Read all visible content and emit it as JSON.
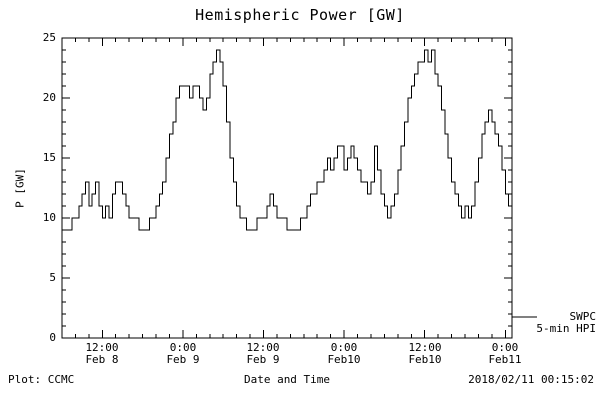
{
  "title": "Hemispheric Power [GW]",
  "footer": {
    "plot_credit": "Plot: CCMC",
    "timestamp": "2018/02/11 00:15:02"
  },
  "legend": {
    "line1": "SWPC",
    "line2": "5-min HPI"
  },
  "chart_data": {
    "type": "line",
    "step": true,
    "title": "Hemispheric Power [GW]",
    "xlabel": "Date and Time",
    "ylabel": "P [GW]",
    "ylim": [
      0,
      25
    ],
    "yticks": [
      0,
      5,
      10,
      15,
      20,
      25
    ],
    "grid": false,
    "line_color": "#000000",
    "background": "#ffffff",
    "legend_position": "right-outside",
    "x_start": "2018-02-08 06:00",
    "x_end": "2018-02-11 01:00",
    "x_interval_minutes": 30,
    "x_span_hours": 67,
    "xticks": [
      {
        "hour": 6,
        "time": "12:00",
        "date": "Feb 8"
      },
      {
        "hour": 18,
        "time": "0:00",
        "date": "Feb 9"
      },
      {
        "hour": 30,
        "time": "12:00",
        "date": "Feb 9"
      },
      {
        "hour": 42,
        "time": "0:00",
        "date": "Feb10"
      },
      {
        "hour": 54,
        "time": "12:00",
        "date": "Feb10"
      },
      {
        "hour": 66,
        "time": "0:00",
        "date": "Feb11"
      }
    ],
    "series": [
      {
        "name": "SWPC 5-min HPI",
        "values": [
          9,
          9,
          9,
          10,
          10,
          11,
          12,
          13,
          11,
          12,
          13,
          11,
          10,
          11,
          10,
          12,
          13,
          13,
          12,
          11,
          10,
          10,
          10,
          9,
          9,
          9,
          10,
          10,
          11,
          12,
          13,
          15,
          17,
          18,
          20,
          21,
          21,
          21,
          20,
          21,
          21,
          20,
          19,
          20,
          22,
          23,
          24,
          23,
          21,
          18,
          15,
          13,
          11,
          10,
          10,
          9,
          9,
          9,
          10,
          10,
          10,
          11,
          12,
          11,
          10,
          10,
          10,
          9,
          9,
          9,
          9,
          10,
          10,
          11,
          12,
          12,
          13,
          13,
          14,
          15,
          14,
          15,
          16,
          16,
          14,
          15,
          16,
          15,
          14,
          13,
          13,
          12,
          13,
          16,
          14,
          12,
          11,
          10,
          11,
          12,
          14,
          16,
          18,
          20,
          21,
          22,
          23,
          23,
          24,
          23,
          24,
          22,
          21,
          19,
          17,
          15,
          13,
          12,
          11,
          10,
          11,
          10,
          11,
          13,
          15,
          17,
          18,
          19,
          18,
          17,
          16,
          14,
          12,
          11,
          11
        ]
      }
    ]
  }
}
